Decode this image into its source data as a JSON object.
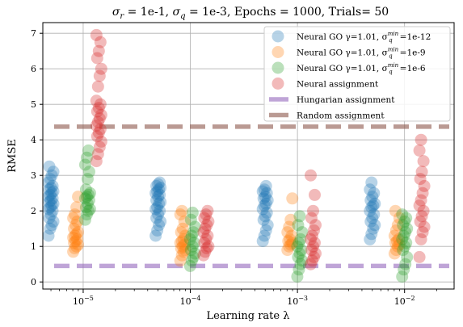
{
  "chart_data": {
    "type": "scatter",
    "title": "σr = 1e-1, σq = 1e-3, Epochs = 1000, Trials= 50",
    "title_parts": {
      "a": "σ",
      "a_sub": "r",
      "b": " = 1e-1, ",
      "c": "σ",
      "c_sub": "q",
      "d": " = 1e-3, Epochs = 1000, Trials= 50"
    },
    "xlabel": "Learning rate λ",
    "ylabel": "RMSE",
    "xscale": "log",
    "xlim": [
      4.2e-06,
      0.029
    ],
    "ylim": [
      -0.2,
      7.3
    ],
    "grid": true,
    "legend_position": "top-right",
    "yticks": [
      0,
      1,
      2,
      3,
      4,
      5,
      6,
      7
    ],
    "xticks": [
      {
        "value": 1e-05,
        "base": "10",
        "exp": "−5"
      },
      {
        "value": 0.0001,
        "base": "10",
        "exp": "−4"
      },
      {
        "value": 0.001,
        "base": "10",
        "exp": "−3"
      },
      {
        "value": 0.01,
        "base": "10",
        "exp": "−2"
      }
    ],
    "learning_rates": [
      5e-06,
      1e-05,
      5e-05,
      0.0001,
      0.0005,
      0.001,
      0.005,
      0.01
    ],
    "series": [
      {
        "name": "Neural GO γ=1.01, σq^min=1e-12",
        "legend_text": "Neural GO γ=1.01, σ",
        "legend_sup": "min",
        "legend_sub": "q",
        "legend_tail": "=1e-12",
        "color": "#1f77b4",
        "marker": "circle",
        "x_offset_factor": 1.0,
        "points": [
          {
            "x": 5e-06,
            "y": [
              1.3,
              1.5,
              1.6,
              1.7,
              1.8,
              1.9,
              2.0,
              2.05,
              2.1,
              2.15,
              2.2,
              2.25,
              2.3,
              2.35,
              2.4,
              2.45,
              2.5,
              2.55,
              2.6,
              2.65,
              2.7,
              2.8,
              2.9,
              3.0,
              3.1,
              3.25
            ]
          },
          {
            "x": 5e-05,
            "y": [
              1.3,
              1.45,
              1.6,
              1.7,
              1.8,
              1.9,
              2.0,
              2.05,
              2.1,
              2.2,
              2.25,
              2.3,
              2.4,
              2.45,
              2.5,
              2.55,
              2.6,
              2.65,
              2.7,
              2.75,
              2.8
            ]
          },
          {
            "x": 0.0005,
            "y": [
              1.15,
              1.3,
              1.45,
              1.6,
              1.75,
              1.85,
              1.95,
              2.05,
              2.15,
              2.2,
              2.3,
              2.35,
              2.4,
              2.5,
              2.55,
              2.6,
              2.7
            ]
          },
          {
            "x": 0.005,
            "y": [
              1.2,
              1.35,
              1.5,
              1.6,
              1.7,
              1.8,
              1.9,
              2.0,
              2.1,
              2.15,
              2.2,
              2.3,
              2.4,
              2.5,
              2.6,
              2.8
            ]
          }
        ]
      },
      {
        "name": "Neural GO γ=1.01, σq^min=1e-9",
        "legend_text": "Neural GO γ=1.01, σ",
        "legend_sup": "min",
        "legend_sub": "q",
        "legend_tail": "=1e-9",
        "color": "#ff7f0e",
        "marker": "circle",
        "x_offset_factor": 1.0,
        "points": [
          {
            "x": 8.5e-06,
            "y": [
              0.85,
              0.95,
              1.0,
              1.05,
              1.1,
              1.15,
              1.2,
              1.25,
              1.3,
              1.35,
              1.4,
              1.5,
              1.6,
              1.7,
              1.8,
              1.9,
              2.1,
              2.4
            ]
          },
          {
            "x": 8.5e-05,
            "y": [
              0.6,
              0.75,
              0.85,
              0.9,
              0.95,
              1.0,
              1.05,
              1.1,
              1.15,
              1.2,
              1.3,
              1.4,
              1.5,
              1.7,
              1.9,
              2.0
            ]
          },
          {
            "x": 0.00085,
            "y": [
              0.9,
              1.0,
              1.05,
              1.1,
              1.15,
              1.2,
              1.3,
              1.4,
              1.55,
              1.75,
              2.35
            ]
          },
          {
            "x": 0.0085,
            "y": [
              0.8,
              0.9,
              1.0,
              1.05,
              1.1,
              1.15,
              1.2,
              1.3,
              1.45,
              1.6,
              1.8,
              2.0
            ]
          }
        ]
      },
      {
        "name": "Neural GO γ=1.01, σq^min=1e-6",
        "legend_text": "Neural GO γ=1.01, σ",
        "legend_sup": "min",
        "legend_sub": "q",
        "legend_tail": "=1e-6",
        "color": "#2ca02c",
        "marker": "circle",
        "x_offset_factor": 1.0,
        "points": [
          {
            "x": 1.1e-05,
            "y": [
              1.75,
              1.9,
              2.0,
              2.05,
              2.1,
              2.2,
              2.3,
              2.35,
              2.4,
              2.45,
              2.5,
              2.6,
              2.9,
              3.1,
              3.3,
              3.5,
              3.7
            ]
          },
          {
            "x": 0.000105,
            "y": [
              0.45,
              0.6,
              0.7,
              0.8,
              0.9,
              1.0,
              1.1,
              1.2,
              1.3,
              1.4,
              1.55,
              1.75,
              1.95
            ]
          },
          {
            "x": 0.00105,
            "y": [
              0.15,
              0.35,
              0.5,
              0.6,
              0.7,
              0.8,
              0.9,
              1.0,
              1.1,
              1.2,
              1.4,
              1.6,
              1.85
            ]
          },
          {
            "x": 0.01,
            "y": [
              0.15,
              0.35,
              0.5,
              0.7,
              0.9,
              1.0,
              1.1,
              1.2,
              1.3,
              1.4,
              1.5,
              1.6,
              1.7,
              1.8,
              1.9
            ]
          }
        ]
      },
      {
        "name": "Neural assignment",
        "legend_text": "Neural assignment",
        "color": "#d62728",
        "marker": "circle",
        "x_offset_factor": 1.0,
        "points": [
          {
            "x": 1.4e-05,
            "y": [
              3.4,
              3.6,
              3.8,
              3.95,
              4.1,
              4.2,
              4.3,
              4.4,
              4.5,
              4.6,
              4.7,
              4.8,
              4.9,
              5.0,
              5.1,
              5.5,
              5.8,
              6.0,
              6.3,
              6.5,
              6.75,
              6.95
            ]
          },
          {
            "x": 0.00014,
            "y": [
              0.75,
              0.85,
              0.95,
              1.0,
              1.1,
              1.2,
              1.3,
              1.4,
              1.5,
              1.6,
              1.7,
              1.8,
              1.9,
              2.0
            ]
          },
          {
            "x": 0.0014,
            "y": [
              0.5,
              0.6,
              0.7,
              0.8,
              0.9,
              1.0,
              1.1,
              1.2,
              1.3,
              1.45,
              1.6,
              1.8,
              2.0,
              2.45,
              3.0
            ]
          },
          {
            "x": 0.0145,
            "y": [
              0.7,
              1.2,
              1.4,
              1.55,
              1.7,
              1.85,
              2.0,
              2.15,
              2.3,
              2.5,
              2.7,
              2.9,
              3.1,
              3.4,
              3.7,
              4.0
            ]
          }
        ]
      },
      {
        "name": "Hungarian assignment",
        "legend_text": "Hungarian assignment",
        "color": "#9467bd",
        "marker": "dashed-line",
        "y": 0.45
      },
      {
        "name": "Random assignment",
        "legend_text": "Random assignment",
        "color": "#8c564b",
        "marker": "dashed-line",
        "y": 4.37
      }
    ]
  }
}
